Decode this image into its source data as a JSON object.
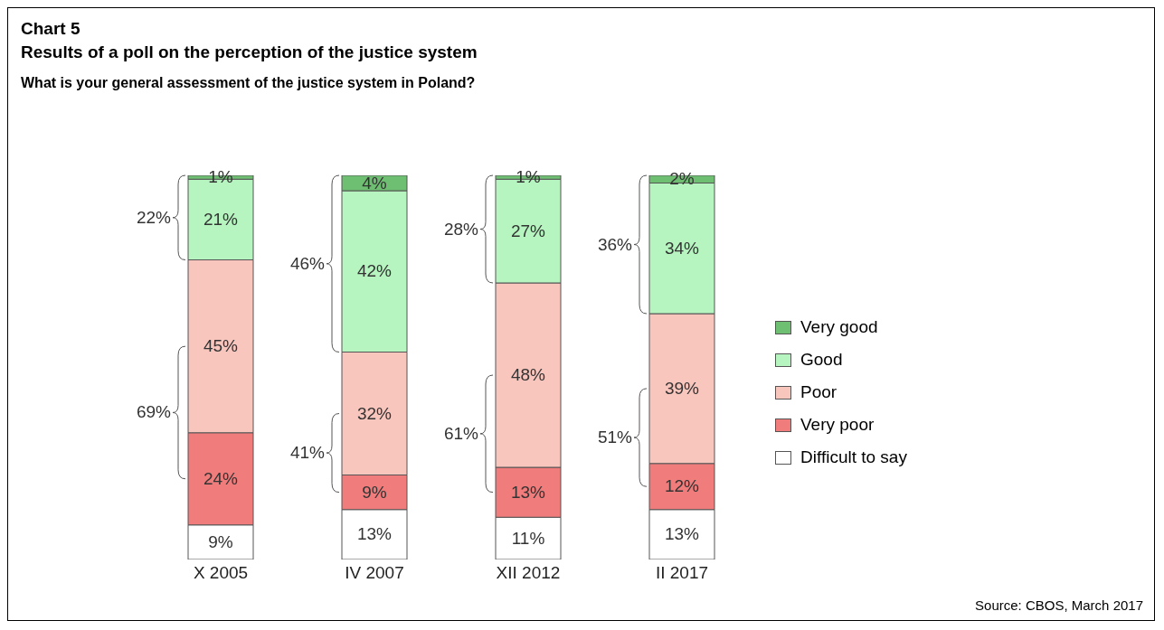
{
  "chart_data": {
    "type": "bar",
    "stacked": true,
    "title": "Chart 5",
    "subtitle": "Results of a poll on the perception of the justice system",
    "categories": [
      "X 2005",
      "IV 2007",
      "XII 2012",
      "II 2017"
    ],
    "ylim": [
      0,
      100
    ],
    "series": [
      {
        "name": "Difficult to say",
        "color": "#ffffff",
        "values": [
          9,
          13,
          11,
          13
        ],
        "value_labels": [
          "9%",
          "13%",
          "11%",
          "13%"
        ]
      },
      {
        "name": "Very poor",
        "color": "#f07c7c",
        "values": [
          24,
          9,
          13,
          12
        ],
        "value_labels": [
          "24%",
          "9%",
          "13%",
          "12%"
        ]
      },
      {
        "name": "Poor",
        "color": "#f9c6be",
        "values": [
          45,
          32,
          48,
          39
        ],
        "value_labels": [
          "45%",
          "32%",
          "48%",
          "39%"
        ]
      },
      {
        "name": "Good",
        "color": "#b6f5c0",
        "values": [
          21,
          42,
          27,
          34
        ],
        "value_labels": [
          "21%",
          "42%",
          "27%",
          "34%"
        ]
      },
      {
        "name": "Very good",
        "color": "#6fbf73",
        "values": [
          1,
          4,
          1,
          2
        ],
        "value_labels": [
          "1%",
          "4%",
          "1%",
          "2%"
        ]
      }
    ],
    "legend": "right",
    "annotations": [
      "What is your general assessment of the justice system in Poland?",
      "22%",
      "69%",
      "46%",
      "41%",
      "28%",
      "61%",
      "36%",
      "51%",
      "Source: CBOS, March 2017"
    ]
  }
}
